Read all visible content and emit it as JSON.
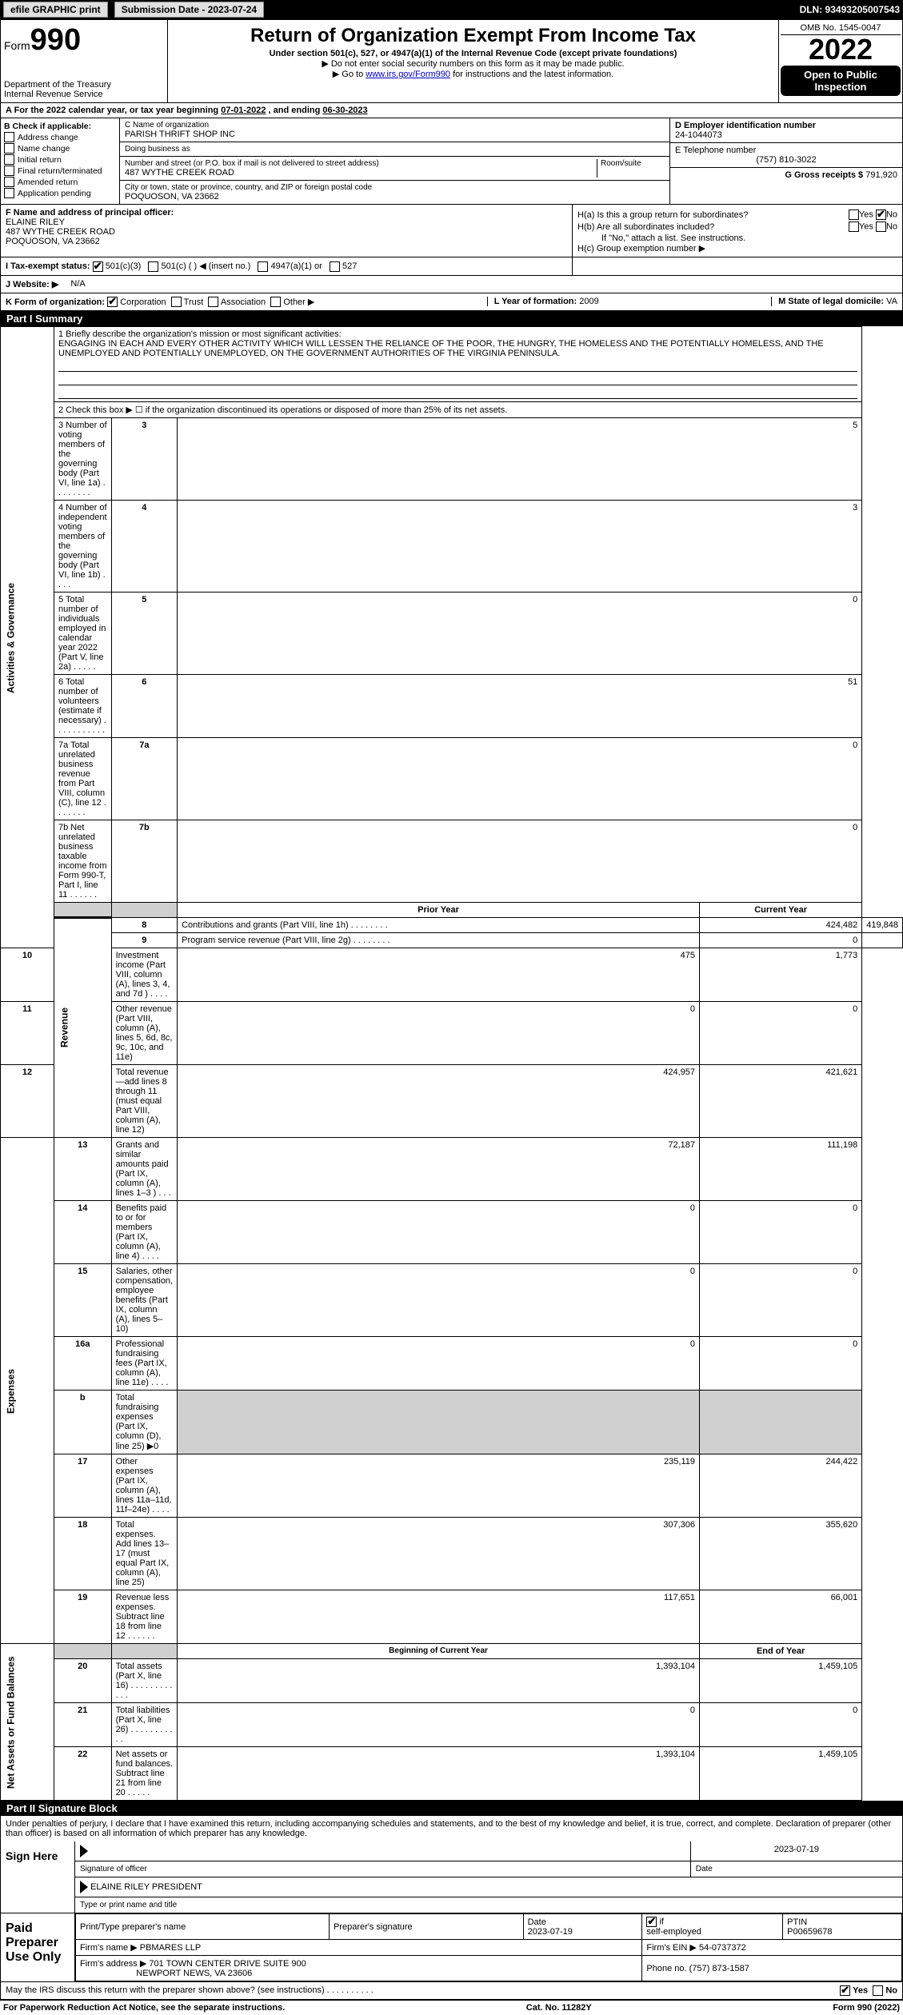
{
  "topbar": {
    "efile_label": "efile GRAPHIC print",
    "sub_label": "Submission Date - 2023-07-24",
    "dln": "DLN: 93493205007543"
  },
  "header": {
    "form_word": "Form",
    "form_num": "990",
    "dept": "Department of the Treasury",
    "irs": "Internal Revenue Service",
    "title": "Return of Organization Exempt From Income Tax",
    "sub1": "Under section 501(c), 527, or 4947(a)(1) of the Internal Revenue Code (except private foundations)",
    "sub2": "▶ Do not enter social security numbers on this form as it may be made public.",
    "sub3_pre": "▶ Go to ",
    "sub3_link": "www.irs.gov/Form990",
    "sub3_post": " for instructions and the latest information.",
    "omb": "OMB No. 1545-0047",
    "year": "2022",
    "otp": "Open to Public Inspection"
  },
  "period": {
    "label_a": "A For the 2022 calendar year, or tax year beginning ",
    "begin": "07-01-2022",
    "mid": " , and ending ",
    "end": "06-30-2023"
  },
  "boxB": {
    "title": "B Check if applicable:",
    "items": [
      "Address change",
      "Name change",
      "Initial return",
      "Final return/terminated",
      "Amended return",
      "Application pending"
    ]
  },
  "boxC": {
    "name_label": "C Name of organization",
    "name": "PARISH THRIFT SHOP INC",
    "dba_label": "Doing business as",
    "dba": "",
    "addr_label": "Number and street (or P.O. box if mail is not delivered to street address)",
    "room_label": "Room/suite",
    "addr": "487 WYTHE CREEK ROAD",
    "city_label": "City or town, state or province, country, and ZIP or foreign postal code",
    "city": "POQUOSON, VA  23662"
  },
  "boxD": {
    "label": "D Employer identification number",
    "val": "24-1044073"
  },
  "boxE": {
    "label": "E Telephone number",
    "val": "(757) 810-3022"
  },
  "boxG": {
    "label": "G Gross receipts $",
    "val": "791,920"
  },
  "boxF": {
    "label": "F Name and address of principal officer:",
    "name": "ELAINE RILEY",
    "addr1": "487 WYTHE CREEK ROAD",
    "addr2": "POQUOSON, VA  23662"
  },
  "boxH": {
    "a": "H(a)  Is this a group return for subordinates?",
    "b": "H(b)  Are all subordinates included?",
    "b_note": "If \"No,\" attach a list. See instructions.",
    "c": "H(c)  Group exemption number ▶",
    "yes": "Yes",
    "no": "No"
  },
  "boxI": {
    "label": "I Tax-exempt status:",
    "opt1": "501(c)(3)",
    "opt2": "501(c) (  ) ◀ (insert no.)",
    "opt3": "4947(a)(1) or",
    "opt4": "527"
  },
  "boxJ": {
    "label": "J Website: ▶",
    "val": "N/A"
  },
  "boxK": {
    "label": "K Form of organization:",
    "opts": [
      "Corporation",
      "Trust",
      "Association",
      "Other ▶"
    ]
  },
  "boxL": {
    "label": "L Year of formation: ",
    "val": "2009"
  },
  "boxM": {
    "label": "M State of legal domicile: ",
    "val": "VA"
  },
  "part1": {
    "header": "Part I    Summary",
    "l1_label": "1  Briefly describe the organization's mission or most significant activities:",
    "l1_text": "ENGAGING IN EACH AND EVERY OTHER ACTIVITY WHICH WILL LESSEN THE RELIANCE OF THE POOR, THE HUNGRY, THE HOMELESS AND THE POTENTIALLY HOMELESS, AND THE UNEMPLOYED AND POTENTIALLY UNEMPLOYED, ON THE GOVERNMENT AUTHORITIES OF THE VIRGINIA PENINSULA.",
    "l2": "2  Check this box ▶ ☐ if the organization discontinued its operations or disposed of more than 25% of its net assets.",
    "sectA_label": "Activities & Governance",
    "sectB_label": "Revenue",
    "sectC_label": "Expenses",
    "sectD_label": "Net Assets or Fund Balances",
    "prior_hdr": "Prior Year",
    "curr_hdr": "Current Year",
    "boy_hdr": "Beginning of Current Year",
    "eoy_hdr": "End of Year",
    "rowsA": [
      {
        "n": "3",
        "t": "Number of voting members of the governing body (Part VI, line 1a)   .    .    .    .    .    .    .    .",
        "v": "5"
      },
      {
        "n": "4",
        "t": "Number of independent voting members of the governing body (Part VI, line 1b)    .    .    .    .",
        "v": "3"
      },
      {
        "n": "5",
        "t": "Total number of individuals employed in calendar year 2022 (Part V, line 2a)    .    .    .    .    .",
        "v": "0"
      },
      {
        "n": "6",
        "t": "Total number of volunteers (estimate if necessary)    .    .    .    .    .    .    .    .    .    .    .",
        "v": "51"
      },
      {
        "n": "7a",
        "t": "Total unrelated business revenue from Part VIII, column (C), line 12    .    .    .    .    .    .    .",
        "v": "0"
      },
      {
        "n": "7b",
        "t": "Net unrelated business taxable income from Form 990-T, Part I, line 11    .    .    .    .    .    .",
        "v": "0"
      }
    ],
    "rowsB": [
      {
        "n": "8",
        "t": "Contributions and grants (Part VIII, line 1h)    .    .    .    .    .    .    .    .",
        "p": "424,482",
        "c": "419,848"
      },
      {
        "n": "9",
        "t": "Program service revenue (Part VIII, line 2g)    .    .    .    .    .    .    .    .",
        "p": "0",
        "c": ""
      },
      {
        "n": "10",
        "t": "Investment income (Part VIII, column (A), lines 3, 4, and 7d )    .    .    .    .",
        "p": "475",
        "c": "1,773"
      },
      {
        "n": "11",
        "t": "Other revenue (Part VIII, column (A), lines 5, 6d, 8c, 9c, 10c, and 11e)",
        "p": "0",
        "c": "0"
      },
      {
        "n": "12",
        "t": "Total revenue—add lines 8 through 11 (must equal Part VIII, column (A), line 12)",
        "p": "424,957",
        "c": "421,621"
      }
    ],
    "rowsC": [
      {
        "n": "13",
        "t": "Grants and similar amounts paid (Part IX, column (A), lines 1–3 )    .    .    .",
        "p": "72,187",
        "c": "111,198"
      },
      {
        "n": "14",
        "t": "Benefits paid to or for members (Part IX, column (A), line 4)    .    .    .    .",
        "p": "0",
        "c": "0"
      },
      {
        "n": "15",
        "t": "Salaries, other compensation, employee benefits (Part IX, column (A), lines 5–10)",
        "p": "0",
        "c": "0"
      },
      {
        "n": "16a",
        "t": "Professional fundraising fees (Part IX, column (A), line 11e)    .    .    .    .",
        "p": "0",
        "c": "0"
      },
      {
        "n": "b",
        "t": "Total fundraising expenses (Part IX, column (D), line 25) ▶0",
        "p": "",
        "c": "",
        "shade": true
      },
      {
        "n": "17",
        "t": "Other expenses (Part IX, column (A), lines 11a–11d, 11f–24e)    .    .    .    .",
        "p": "235,119",
        "c": "244,422"
      },
      {
        "n": "18",
        "t": "Total expenses. Add lines 13–17 (must equal Part IX, column (A), line 25)",
        "p": "307,306",
        "c": "355,620"
      },
      {
        "n": "19",
        "t": "Revenue less expenses. Subtract line 18 from line 12    .    .    .    .    .    .",
        "p": "117,651",
        "c": "66,001"
      }
    ],
    "rowsD": [
      {
        "n": "20",
        "t": "Total assets (Part X, line 16)    .    .    .    .    .    .    .    .    .    .    .    .",
        "p": "1,393,104",
        "c": "1,459,105"
      },
      {
        "n": "21",
        "t": "Total liabilities (Part X, line 26)    .    .    .    .    .    .    .    .    .    .    .",
        "p": "0",
        "c": "0"
      },
      {
        "n": "22",
        "t": "Net assets or fund balances. Subtract line 21 from line 20    .    .    .    .    .",
        "p": "1,393,104",
        "c": "1,459,105"
      }
    ]
  },
  "part2": {
    "header": "Part II    Signature Block",
    "decl": "Under penalties of perjury, I declare that I have examined this return, including accompanying schedules and statements, and to the best of my knowledge and belief, it is true, correct, and complete. Declaration of preparer (other than officer) is based on all information of which preparer has any knowledge.",
    "sign_here": "Sign Here",
    "sig_officer": "Signature of officer",
    "sig_date": "Date",
    "sig_date_val": "2023-07-19",
    "officer_name": "ELAINE RILEY  PRESIDENT",
    "type_name": "Type or print name and title",
    "paid": "Paid Preparer Use Only",
    "prep_name_label": "Print/Type preparer's name",
    "prep_sig_label": "Preparer's signature",
    "date_label": "Date",
    "date_val": "2023-07-19",
    "check_if": "Check ☑ if self-employed",
    "ptin_label": "PTIN",
    "ptin": "P00659678",
    "firm_name_label": "Firm's name    ▶",
    "firm_name": "PBMARES LLP",
    "firm_ein_label": "Firm's EIN ▶",
    "firm_ein": "54-0737372",
    "firm_addr_label": "Firm's address ▶",
    "firm_addr1": "701 TOWN CENTER DRIVE SUITE 900",
    "firm_addr2": "NEWPORT NEWS, VA  23606",
    "phone_label": "Phone no.",
    "phone": "(757) 873-1587",
    "discuss": "May the IRS discuss this return with the preparer shown above? (see instructions)    .    .    .    .    .    .    .    .    .    .",
    "yes": "Yes",
    "no": "No"
  },
  "footer": {
    "pra": "For Paperwork Reduction Act Notice, see the separate instructions.",
    "cat": "Cat. No. 11282Y",
    "form": "Form 990 (2022)"
  }
}
